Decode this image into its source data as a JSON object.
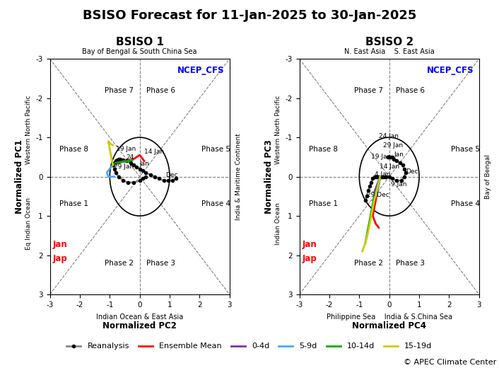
{
  "title": "BSISO Forecast for 11-Jan-2025 to 30-Jan-2025",
  "annotations": [
    {
      "text": "© APEC Climate Center"
    }
  ],
  "chart_data": [
    {
      "type": "line",
      "title": "BSISO 1",
      "x_label": "Normalized PC2",
      "y_label": "Normalized PC1",
      "xlim": [
        -3,
        3
      ],
      "ylim": [
        3,
        -3
      ],
      "xticks": [
        -3,
        -2,
        -1,
        0,
        1,
        2,
        3
      ],
      "yticks": [
        -3,
        -2,
        -1,
        0,
        1,
        2,
        3
      ],
      "grid": false,
      "legend": "lower center",
      "circle_radius": 1.0,
      "edge_labels": {
        "top": "Bay of Bengal & South China Sea",
        "bottom": "Indian Ocean & East Asia",
        "left": [
          "Eq Indian Ocean",
          "Western North Pacific"
        ],
        "right": "India & Maritime Continent"
      },
      "phase_labels": [
        {
          "text": "Phase 7",
          "x": -0.7,
          "y": -2.2
        },
        {
          "text": "Phase 6",
          "x": 0.7,
          "y": -2.2
        },
        {
          "text": "Phase 2",
          "x": -0.7,
          "y": 2.2
        },
        {
          "text": "Phase 3",
          "x": 0.7,
          "y": 2.2
        },
        {
          "text": "Phase 8",
          "x": -2.2,
          "y": -0.7
        },
        {
          "text": "Phase 1",
          "x": -2.2,
          "y": 0.7
        },
        {
          "text": "Phase 5",
          "x": 2.55,
          "y": -0.7
        },
        {
          "text": "Phase 4",
          "x": 2.55,
          "y": 0.7
        }
      ],
      "annotations": [
        {
          "text": "NCEP_CFS",
          "color": "#0000FF"
        },
        {
          "text": "Jan",
          "x": -2.9,
          "y": 1.8,
          "color": "red"
        },
        {
          "text": "Jap",
          "x": -2.9,
          "y": 2.15,
          "color": "red"
        }
      ],
      "date_labels": [
        {
          "text": "Dec",
          "x": 0.85,
          "y": 0.05
        },
        {
          "text": "Jan",
          "x": 0.0,
          "y": -0.25
        },
        {
          "text": "24",
          "x": -0.45,
          "y": -0.4
        },
        {
          "text": "19 Jan",
          "x": -0.8,
          "y": -0.43
        },
        {
          "text": "29 Jan",
          "x": -0.87,
          "y": -0.28
        },
        {
          "text": "14 Jan",
          "x": 0.15,
          "y": -0.55
        }
      ],
      "series": [
        {
          "name": "Reanalysis",
          "color": "#888888",
          "marker": "o",
          "x": [
            1.2,
            1.1,
            0.95,
            0.8,
            0.65,
            0.5,
            0.35,
            0.2,
            0.1,
            0.0,
            -0.1,
            -0.2,
            -0.3,
            -0.45,
            -0.55,
            -0.65,
            -0.7,
            -0.75,
            -0.8,
            -0.85,
            -0.9,
            -0.85,
            -0.8,
            -0.7,
            -0.55,
            -0.4,
            -0.2,
            0.0,
            0.1,
            0.2
          ],
          "values": [
            0.05,
            0.1,
            0.1,
            0.1,
            0.05,
            0.0,
            -0.05,
            -0.1,
            -0.15,
            -0.2,
            -0.25,
            -0.3,
            -0.35,
            -0.4,
            -0.42,
            -0.45,
            -0.45,
            -0.42,
            -0.4,
            -0.35,
            -0.3,
            -0.2,
            -0.1,
            0.0,
            0.1,
            0.15,
            0.15,
            0.1,
            0.05,
            0.0
          ]
        },
        {
          "name": "Ensemble Mean",
          "color": "#FF0000",
          "x": [
            -0.9,
            -0.75,
            -0.6,
            -0.45,
            -0.3,
            -0.2,
            -0.1,
            0.0,
            0.05,
            0.1,
            0.15
          ],
          "values": [
            -0.3,
            -0.35,
            -0.38,
            -0.4,
            -0.42,
            -0.45,
            -0.5,
            -0.55,
            -0.5,
            -0.45,
            -0.4
          ]
        },
        {
          "name": "0-4d",
          "color": "#7B2FBE",
          "x": [
            -0.9,
            -0.8,
            -0.7,
            -0.6,
            -0.5
          ],
          "values": [
            -0.3,
            -0.32,
            -0.35,
            -0.38,
            -0.4
          ]
        },
        {
          "name": "5-9d",
          "color": "#4DA6FF",
          "x": [
            -0.9,
            -1.0,
            -1.1,
            -1.05,
            -0.95,
            -0.85
          ],
          "values": [
            -0.3,
            -0.2,
            -0.1,
            0.0,
            0.0,
            0.0
          ]
        },
        {
          "name": "10-14d",
          "color": "#00AA00",
          "x": [
            -0.9,
            -0.8,
            -0.65,
            -0.5,
            -0.35,
            -0.25
          ],
          "values": [
            -0.3,
            -0.35,
            -0.37,
            -0.38,
            -0.4,
            -0.42
          ]
        },
        {
          "name": "15-19d",
          "color": "#CCCC00",
          "x": [
            -0.9,
            -0.95,
            -1.0,
            -1.05,
            -1.0,
            -0.9
          ],
          "values": [
            -0.3,
            -0.5,
            -0.7,
            -0.9,
            -0.85,
            -0.8
          ]
        }
      ]
    },
    {
      "type": "line",
      "title": "BSISO 2",
      "x_label": "Normalized PC4",
      "y_label": "Normalized PC3",
      "xlim": [
        -3,
        3
      ],
      "ylim": [
        3,
        -3
      ],
      "xticks": [
        -3,
        -2,
        -1,
        0,
        1,
        2,
        3
      ],
      "yticks": [
        -3,
        -2,
        -1,
        0,
        1,
        2,
        3
      ],
      "grid": false,
      "legend": "lower center",
      "circle_radius": 1.0,
      "edge_labels": {
        "top": "N. East Asia    S. East Asia",
        "bottom": "Philippine Sea    India & S.China Sea",
        "left": [
          "Indian Ocean",
          "Western North Pacific"
        ],
        "right": "Bay of Bengal"
      },
      "phase_labels": [
        {
          "text": "Phase 7",
          "x": -0.7,
          "y": -2.2
        },
        {
          "text": "Phase 6",
          "x": 0.7,
          "y": -2.2
        },
        {
          "text": "Phase 2",
          "x": -0.7,
          "y": 2.2
        },
        {
          "text": "Phase 3",
          "x": 0.7,
          "y": 2.2
        },
        {
          "text": "Phase 8",
          "x": -2.2,
          "y": -0.7
        },
        {
          "text": "Phase 1",
          "x": -2.2,
          "y": 0.7
        },
        {
          "text": "Phase 5",
          "x": 2.55,
          "y": -0.7
        },
        {
          "text": "Phase 4",
          "x": 2.55,
          "y": 0.7
        }
      ],
      "annotations": [
        {
          "text": "NCEP_CFS",
          "color": "#0000FF"
        },
        {
          "text": "Jan",
          "x": -2.9,
          "y": 1.8,
          "color": "red"
        },
        {
          "text": "Jap",
          "x": -2.9,
          "y": 2.15,
          "color": "red"
        }
      ],
      "date_labels": [
        {
          "text": "Dec",
          "x": 0.55,
          "y": -0.05
        },
        {
          "text": "Jan",
          "x": 0.15,
          "y": -0.48
        },
        {
          "text": "4 Jan",
          "x": -0.5,
          "y": 0.02
        },
        {
          "text": "19 Jan",
          "x": -0.45,
          "y": -0.42
        },
        {
          "text": "29 Jan",
          "x": -0.2,
          "y": -0.52
        },
        {
          "text": "9 Jan",
          "x": 0.05,
          "y": 0.08
        },
        {
          "text": "14 Jan",
          "x": 0.0,
          "y": -0.38
        },
        {
          "text": "24 Jan",
          "x": -0.35,
          "y": -0.55
        },
        {
          "text": "29 Dec",
          "x": -0.75,
          "y": 0.55
        }
      ],
      "series": [
        {
          "name": "Reanalysis",
          "color": "#888888",
          "marker": "o",
          "x": [
            -0.8,
            -0.75,
            -0.7,
            -0.65,
            -0.6,
            -0.55,
            -0.5,
            -0.45,
            -0.4,
            -0.35,
            -0.3,
            -0.25,
            -0.2,
            -0.15,
            -0.1,
            0.0,
            0.1,
            0.25,
            0.4,
            0.5,
            0.55,
            0.5,
            0.45,
            0.35,
            0.25,
            0.15,
            0.1,
            0.05,
            0.0,
            -0.05
          ],
          "values": [
            0.6,
            0.5,
            0.35,
            0.25,
            0.15,
            0.05,
            0.0,
            0.0,
            0.0,
            0.0,
            0.0,
            0.0,
            0.0,
            0.0,
            0.0,
            0.0,
            0.05,
            0.1,
            0.1,
            0.0,
            -0.1,
            -0.2,
            -0.3,
            -0.35,
            -0.4,
            -0.45,
            -0.5,
            -0.5,
            -0.5,
            -0.5
          ]
        },
        {
          "name": "Ensemble Mean",
          "color": "#FF0000",
          "x": [
            -0.3,
            -0.35,
            -0.4,
            -0.45,
            -0.5,
            -0.55,
            -0.5,
            -0.45,
            -0.35
          ],
          "values": [
            0.0,
            0.2,
            0.4,
            0.6,
            0.8,
            1.0,
            1.1,
            1.2,
            1.3
          ]
        },
        {
          "name": "0-4d",
          "color": "#7B2FBE",
          "x": [
            -0.3,
            -0.35,
            -0.4,
            -0.45,
            -0.5
          ],
          "values": [
            0.0,
            0.1,
            0.2,
            0.3,
            0.4
          ]
        },
        {
          "name": "5-9d",
          "color": "#4DA6FF",
          "x": [
            -0.3,
            -0.35,
            -0.4,
            -0.45,
            -0.5,
            -0.55
          ],
          "values": [
            0.0,
            0.2,
            0.4,
            0.5,
            0.55,
            0.6
          ]
        },
        {
          "name": "10-14d",
          "color": "#00AA00",
          "x": [
            -0.3,
            -0.4,
            -0.5,
            -0.6,
            -0.7,
            -0.8
          ],
          "values": [
            0.0,
            0.3,
            0.5,
            0.9,
            1.3,
            1.7
          ]
        },
        {
          "name": "15-19d",
          "color": "#CCCC00",
          "x": [
            -0.3,
            -0.4,
            -0.5,
            -0.6,
            -0.7,
            -0.8,
            -0.9
          ],
          "values": [
            0.0,
            0.3,
            0.6,
            1.0,
            1.4,
            1.7,
            1.9
          ]
        }
      ]
    }
  ]
}
